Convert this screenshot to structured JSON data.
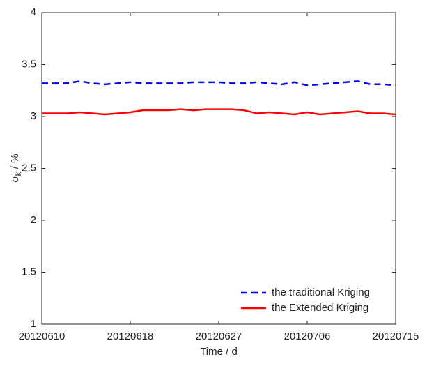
{
  "chart_data": {
    "type": "line",
    "xlabel": "Time / d",
    "ylabel_symbol": "σ",
    "ylabel_subscript": "k",
    "ylabel_unit": " / %",
    "categories": [
      "20120610",
      null,
      null,
      null,
      null,
      null,
      null,
      "20120618",
      null,
      null,
      null,
      null,
      null,
      null,
      "20120627",
      null,
      null,
      null,
      null,
      null,
      null,
      "20120706",
      null,
      null,
      null,
      null,
      null,
      null,
      "20120715"
    ],
    "series": [
      {
        "name": "the traditional Kriging",
        "color": "#0000ff",
        "dash": true,
        "values": [
          3.32,
          3.32,
          3.32,
          3.34,
          3.32,
          3.31,
          3.32,
          3.33,
          3.32,
          3.32,
          3.32,
          3.32,
          3.33,
          3.33,
          3.33,
          3.32,
          3.32,
          3.33,
          3.32,
          3.31,
          3.33,
          3.3,
          3.31,
          3.32,
          3.33,
          3.34,
          3.31,
          3.31,
          3.3
        ]
      },
      {
        "name": "the Extended Kriging",
        "color": "#ff0000",
        "dash": false,
        "values": [
          3.03,
          3.03,
          3.03,
          3.04,
          3.03,
          3.02,
          3.03,
          3.04,
          3.06,
          3.06,
          3.06,
          3.07,
          3.06,
          3.07,
          3.07,
          3.07,
          3.06,
          3.03,
          3.04,
          3.03,
          3.02,
          3.04,
          3.02,
          3.03,
          3.04,
          3.05,
          3.03,
          3.03,
          3.02
        ]
      }
    ],
    "ylim": [
      1,
      4
    ],
    "yticks": [
      1,
      1.5,
      2,
      2.5,
      3,
      3.5,
      4
    ],
    "legend": "lower right"
  }
}
